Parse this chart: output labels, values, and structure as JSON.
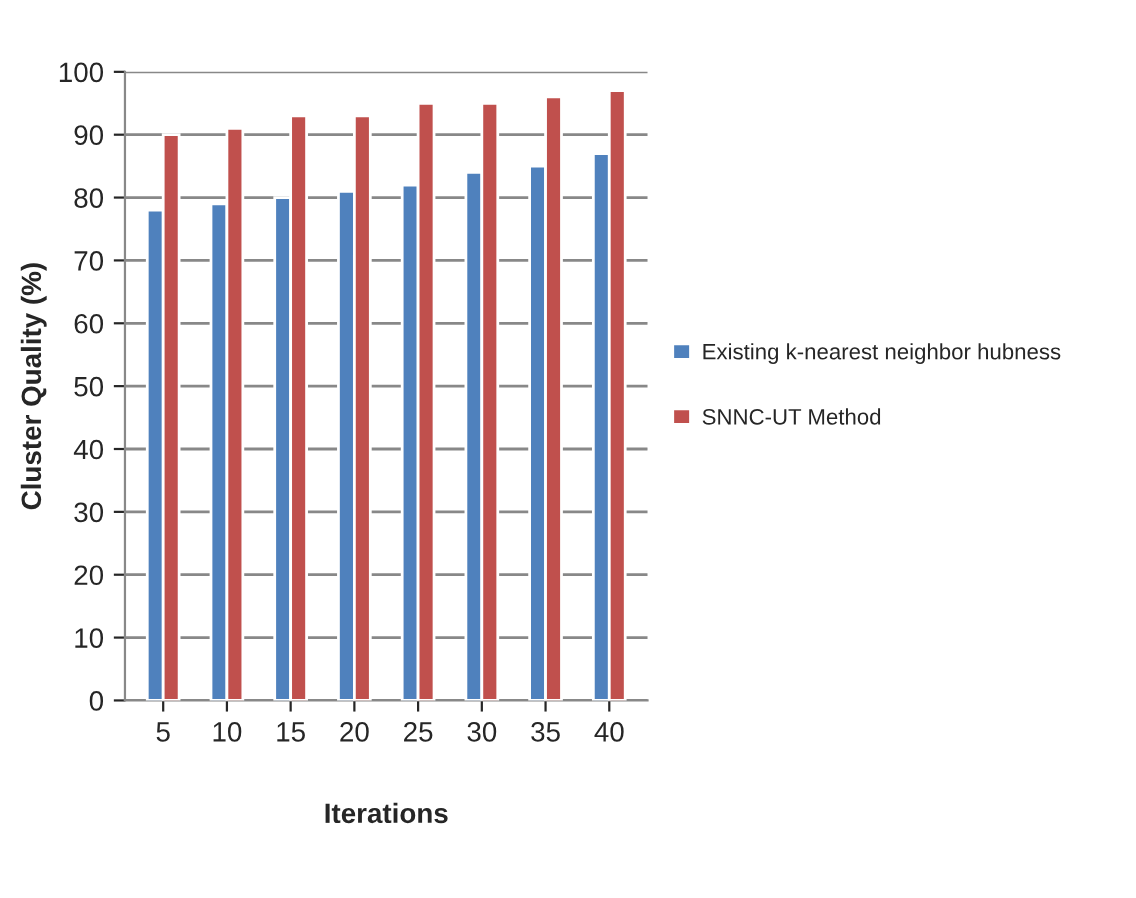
{
  "chart_data": {
    "type": "bar",
    "xlabel": "Iterations",
    "ylabel": "Cluster Quality (%)",
    "categories": [
      "5",
      "10",
      "15",
      "20",
      "25",
      "30",
      "35",
      "40"
    ],
    "series": [
      {
        "name": "Existing k-nearest neighbor hubness",
        "color": "#4f81bd",
        "values": [
          78,
          79,
          80,
          81,
          82,
          84,
          85,
          87
        ]
      },
      {
        "name": "SNNC-UT Method",
        "color": "#c0504d",
        "values": [
          90,
          91,
          93,
          93,
          95,
          95,
          96,
          97
        ]
      }
    ],
    "ylim": [
      0,
      100
    ],
    "yticks": [
      0,
      10,
      20,
      30,
      40,
      50,
      60,
      70,
      80,
      90,
      100
    ],
    "grid": "y",
    "legend": "right"
  }
}
